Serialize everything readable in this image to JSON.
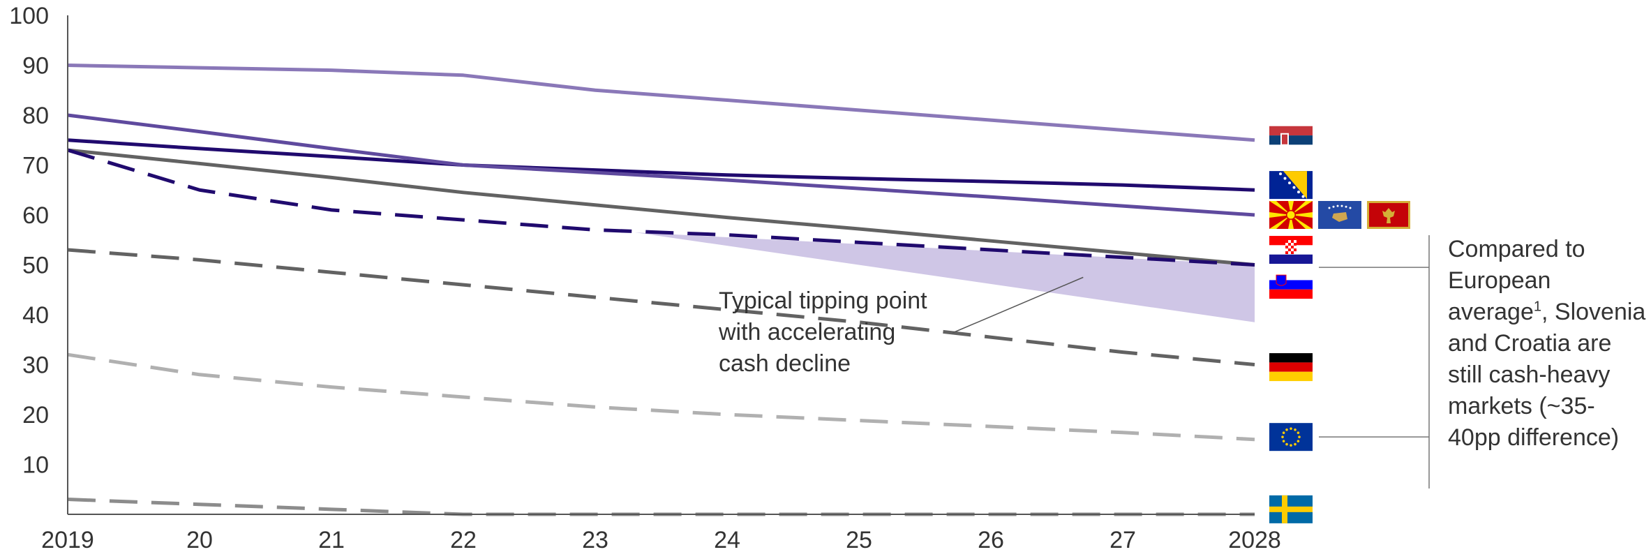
{
  "chart_data": {
    "type": "line",
    "x": [
      "2019",
      "20",
      "21",
      "22",
      "23",
      "24",
      "25",
      "26",
      "27",
      "2028"
    ],
    "ylim": [
      0,
      100
    ],
    "yticks": [
      10,
      20,
      30,
      40,
      50,
      60,
      70,
      80,
      90,
      100
    ],
    "grid": false,
    "legend": "none",
    "series": [
      {
        "flag": "serbia",
        "color": "#8a78b8",
        "dash": "solid",
        "values": [
          90,
          89.5,
          89,
          88,
          85,
          83,
          81,
          79,
          77,
          75
        ]
      },
      {
        "flag": "bosnia-herzegovina",
        "color": "#200a6e",
        "dash": "solid",
        "values": [
          75,
          73.3,
          71.7,
          70,
          69,
          68,
          67.3,
          66.7,
          66,
          65
        ]
      },
      {
        "flag": "north-macedonia-kosovo-montenegro",
        "color": "#5f4a9e",
        "dash": "solid",
        "values": [
          80,
          76.7,
          73.3,
          70,
          68.5,
          67,
          65.3,
          63.6,
          61.8,
          60
        ]
      },
      {
        "flag": "slovenia",
        "color": "#626262",
        "dash": "solid",
        "values": [
          73,
          70.3,
          67.5,
          64.5,
          62,
          59.5,
          57.2,
          54.8,
          52.4,
          50
        ]
      },
      {
        "flag": "croatia",
        "color": "#200a6e",
        "dash": "dashed",
        "values": [
          73,
          65,
          61,
          59,
          57,
          56,
          54.5,
          53,
          51.5,
          50
        ]
      },
      {
        "flag": "germany",
        "color": "#626262",
        "dash": "dashed",
        "values": [
          53,
          51,
          48.5,
          46,
          43.5,
          41,
          38.5,
          35.5,
          32.5,
          30
        ]
      },
      {
        "flag": "eu",
        "color": "#b0b0b0",
        "dash": "dashed",
        "values": [
          32,
          28,
          25.5,
          23.5,
          21.5,
          20,
          18.8,
          17.6,
          16.4,
          15
        ]
      },
      {
        "flag": "sweden",
        "color": "#8c8c8c",
        "dash": "dashed",
        "values": [
          3,
          2,
          1,
          0,
          0,
          0,
          0,
          0,
          0,
          0
        ]
      }
    ],
    "shaded_band": {
      "color": "#cfc6e6",
      "points": [
        [
          4.3,
          56.5
        ],
        [
          9,
          50
        ],
        [
          9,
          38.5
        ]
      ]
    },
    "annotation": {
      "lines": [
        "Typical tipping point",
        "with accelerating",
        "cash decline"
      ],
      "pointer_to": [
        7.7,
        47.5
      ]
    },
    "side_note": {
      "text_before": "Compared to European average",
      "superscript": "1",
      "text_after": ", Slovenia and Croatia are still cash-heavy markets (~35-40pp difference)"
    },
    "flags": [
      {
        "name": "serbia-flag",
        "y": 75,
        "col": 0
      },
      {
        "name": "bosnia-herzegovina-flag",
        "y": 66,
        "col": 0
      },
      {
        "name": "north-macedonia-flag",
        "y": 60,
        "col": 0
      },
      {
        "name": "kosovo-flag",
        "y": 60,
        "col": 1
      },
      {
        "name": "montenegro-flag",
        "y": 60,
        "col": 2
      },
      {
        "name": "croatia-flag",
        "y": 53,
        "col": 0
      },
      {
        "name": "slovenia-flag",
        "y": 46,
        "col": 0
      },
      {
        "name": "germany-flag",
        "y": 29.5,
        "col": 0
      },
      {
        "name": "eu-flag",
        "y": 15.5,
        "col": 0
      },
      {
        "name": "sweden-flag",
        "y": 1,
        "col": 0
      }
    ]
  }
}
